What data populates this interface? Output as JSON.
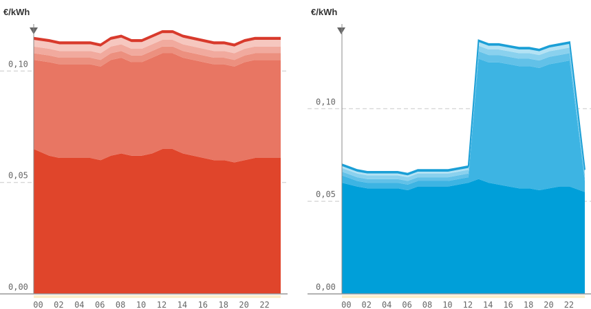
{
  "chart_data": [
    {
      "type": "area",
      "unit": "€/kWh",
      "color_bottom": "#e0452b",
      "color_top": "#d83a2c",
      "bands_colors": [
        "#e0452b",
        "#e87663",
        "#ec907f",
        "#f1aa9e",
        "#f6c7bf",
        "#d83a2c"
      ],
      "x": [
        "00",
        "01",
        "02",
        "03",
        "04",
        "05",
        "06",
        "07",
        "08",
        "09",
        "10",
        "11",
        "12",
        "13",
        "14",
        "15",
        "16",
        "17",
        "18",
        "19",
        "20",
        "21",
        "22",
        "23"
      ],
      "xtick_labels": [
        "00",
        "02",
        "04",
        "06",
        "08",
        "10",
        "12",
        "14",
        "16",
        "18",
        "20",
        "22"
      ],
      "ylim": [
        0,
        0.118
      ],
      "ytick_labels": [
        "0,00",
        "0,05",
        "0,10"
      ],
      "yticks": [
        0,
        0.05,
        0.1
      ],
      "series": [
        {
          "values": [
            0.065,
            0.062,
            0.061,
            0.061,
            0.061,
            0.061,
            0.06,
            0.062,
            0.063,
            0.062,
            0.062,
            0.063,
            0.065,
            0.065,
            0.063,
            0.062,
            0.061,
            0.06,
            0.06,
            0.059,
            0.06,
            0.061,
            0.061,
            0.061
          ]
        },
        {
          "values": [
            0.04,
            0.042,
            0.042,
            0.042,
            0.042,
            0.042,
            0.042,
            0.043,
            0.043,
            0.042,
            0.042,
            0.043,
            0.043,
            0.043,
            0.043,
            0.043,
            0.043,
            0.043,
            0.043,
            0.043,
            0.044,
            0.044,
            0.044,
            0.044
          ]
        },
        {
          "values": [
            0.003,
            0.003,
            0.003,
            0.003,
            0.003,
            0.003,
            0.003,
            0.003,
            0.003,
            0.003,
            0.003,
            0.003,
            0.003,
            0.003,
            0.003,
            0.003,
            0.003,
            0.003,
            0.003,
            0.003,
            0.003,
            0.003,
            0.003,
            0.003
          ]
        },
        {
          "values": [
            0.003,
            0.003,
            0.003,
            0.003,
            0.003,
            0.003,
            0.003,
            0.003,
            0.003,
            0.003,
            0.003,
            0.003,
            0.003,
            0.003,
            0.003,
            0.003,
            0.003,
            0.003,
            0.003,
            0.003,
            0.003,
            0.003,
            0.003,
            0.003
          ]
        },
        {
          "values": [
            0.003,
            0.003,
            0.003,
            0.003,
            0.003,
            0.003,
            0.003,
            0.003,
            0.003,
            0.003,
            0.003,
            0.003,
            0.003,
            0.003,
            0.003,
            0.003,
            0.003,
            0.003,
            0.003,
            0.003,
            0.003,
            0.003,
            0.003,
            0.003
          ]
        },
        {
          "values": [
            0.001,
            0.001,
            0.001,
            0.001,
            0.001,
            0.001,
            0.001,
            0.001,
            0.001,
            0.001,
            0.001,
            0.001,
            0.001,
            0.001,
            0.001,
            0.001,
            0.001,
            0.001,
            0.001,
            0.001,
            0.001,
            0.001,
            0.001,
            0.001
          ]
        }
      ],
      "grid_dashed": true
    },
    {
      "type": "area",
      "unit": "€/kWh",
      "color_bottom": "#009fd9",
      "color_top": "#1b9fd6",
      "bands_colors": [
        "#009fd9",
        "#3db4e3",
        "#62c1e8",
        "#8ad1ee",
        "#b3e2f4",
        "#1b9fd6"
      ],
      "x": [
        "00",
        "01",
        "02",
        "03",
        "04",
        "05",
        "06",
        "07",
        "08",
        "09",
        "10",
        "11",
        "12",
        "13",
        "14",
        "15",
        "16",
        "17",
        "18",
        "19",
        "20",
        "21",
        "22",
        "23"
      ],
      "xtick_labels": [
        "00",
        "02",
        "04",
        "06",
        "08",
        "10",
        "12",
        "14",
        "16",
        "18",
        "20",
        "22"
      ],
      "ylim": [
        0,
        0.142
      ],
      "ytick_labels": [
        "0,00",
        "0,05",
        "0,10"
      ],
      "yticks": [
        0,
        0.05,
        0.1
      ],
      "series": [
        {
          "values": [
            0.06,
            0.058,
            0.057,
            0.057,
            0.057,
            0.057,
            0.056,
            0.058,
            0.058,
            0.058,
            0.058,
            0.059,
            0.06,
            0.062,
            0.06,
            0.059,
            0.058,
            0.057,
            0.057,
            0.056,
            0.057,
            0.058,
            0.058,
            0.055
          ]
        },
        {
          "values": [
            0.004,
            0.003,
            0.003,
            0.003,
            0.003,
            0.003,
            0.003,
            0.003,
            0.003,
            0.003,
            0.003,
            0.003,
            0.003,
            0.065,
            0.065,
            0.066,
            0.066,
            0.066,
            0.066,
            0.066,
            0.067,
            0.067,
            0.068,
            0.006
          ]
        },
        {
          "values": [
            0.002,
            0.002,
            0.002,
            0.002,
            0.002,
            0.002,
            0.002,
            0.002,
            0.002,
            0.002,
            0.002,
            0.002,
            0.002,
            0.004,
            0.004,
            0.004,
            0.004,
            0.004,
            0.004,
            0.004,
            0.004,
            0.004,
            0.004,
            0.002
          ]
        },
        {
          "values": [
            0.002,
            0.002,
            0.002,
            0.002,
            0.002,
            0.002,
            0.002,
            0.002,
            0.002,
            0.002,
            0.002,
            0.002,
            0.002,
            0.003,
            0.003,
            0.003,
            0.003,
            0.003,
            0.003,
            0.003,
            0.003,
            0.003,
            0.003,
            0.002
          ]
        },
        {
          "values": [
            0.001,
            0.001,
            0.001,
            0.001,
            0.001,
            0.001,
            0.001,
            0.001,
            0.001,
            0.001,
            0.001,
            0.001,
            0.001,
            0.002,
            0.002,
            0.002,
            0.002,
            0.002,
            0.002,
            0.002,
            0.002,
            0.002,
            0.002,
            0.001
          ]
        },
        {
          "values": [
            0.001,
            0.001,
            0.001,
            0.001,
            0.001,
            0.001,
            0.001,
            0.001,
            0.001,
            0.001,
            0.001,
            0.001,
            0.001,
            0.001,
            0.001,
            0.001,
            0.001,
            0.001,
            0.001,
            0.001,
            0.001,
            0.001,
            0.001,
            0.001
          ]
        }
      ],
      "grid_dashed": true
    }
  ]
}
